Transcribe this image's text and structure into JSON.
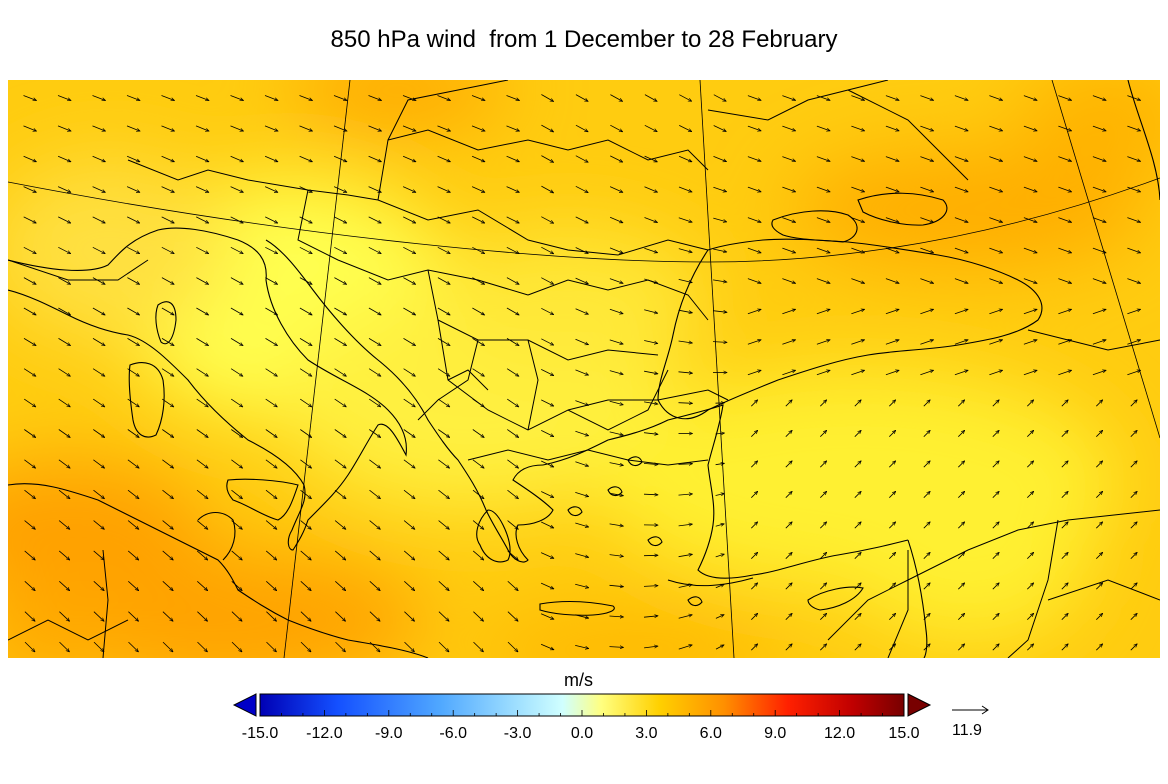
{
  "title": "850 hPa wind  from 1 December to 28 February",
  "colorbar": {
    "unit": "m/s",
    "min": -15.0,
    "max": 15.0,
    "ticks": [
      "-15.0",
      "-12.0",
      "-9.0",
      "-6.0",
      "-3.0",
      "0.0",
      "3.0",
      "6.0",
      "9.0",
      "12.0",
      "15.0"
    ],
    "colors": [
      "#0000b4",
      "#0a32ff",
      "#3c8cff",
      "#78c8ff",
      "#b4f0ff",
      "#ffff78",
      "#ffd200",
      "#ff9600",
      "#ff3200",
      "#d20000",
      "#780000"
    ],
    "extend": "both"
  },
  "reference_vector": {
    "label": "11.9"
  },
  "map": {
    "field_palette": {
      "low": "#ffff55",
      "mid": "#ffcc00",
      "high": "#ffa000"
    }
  }
}
